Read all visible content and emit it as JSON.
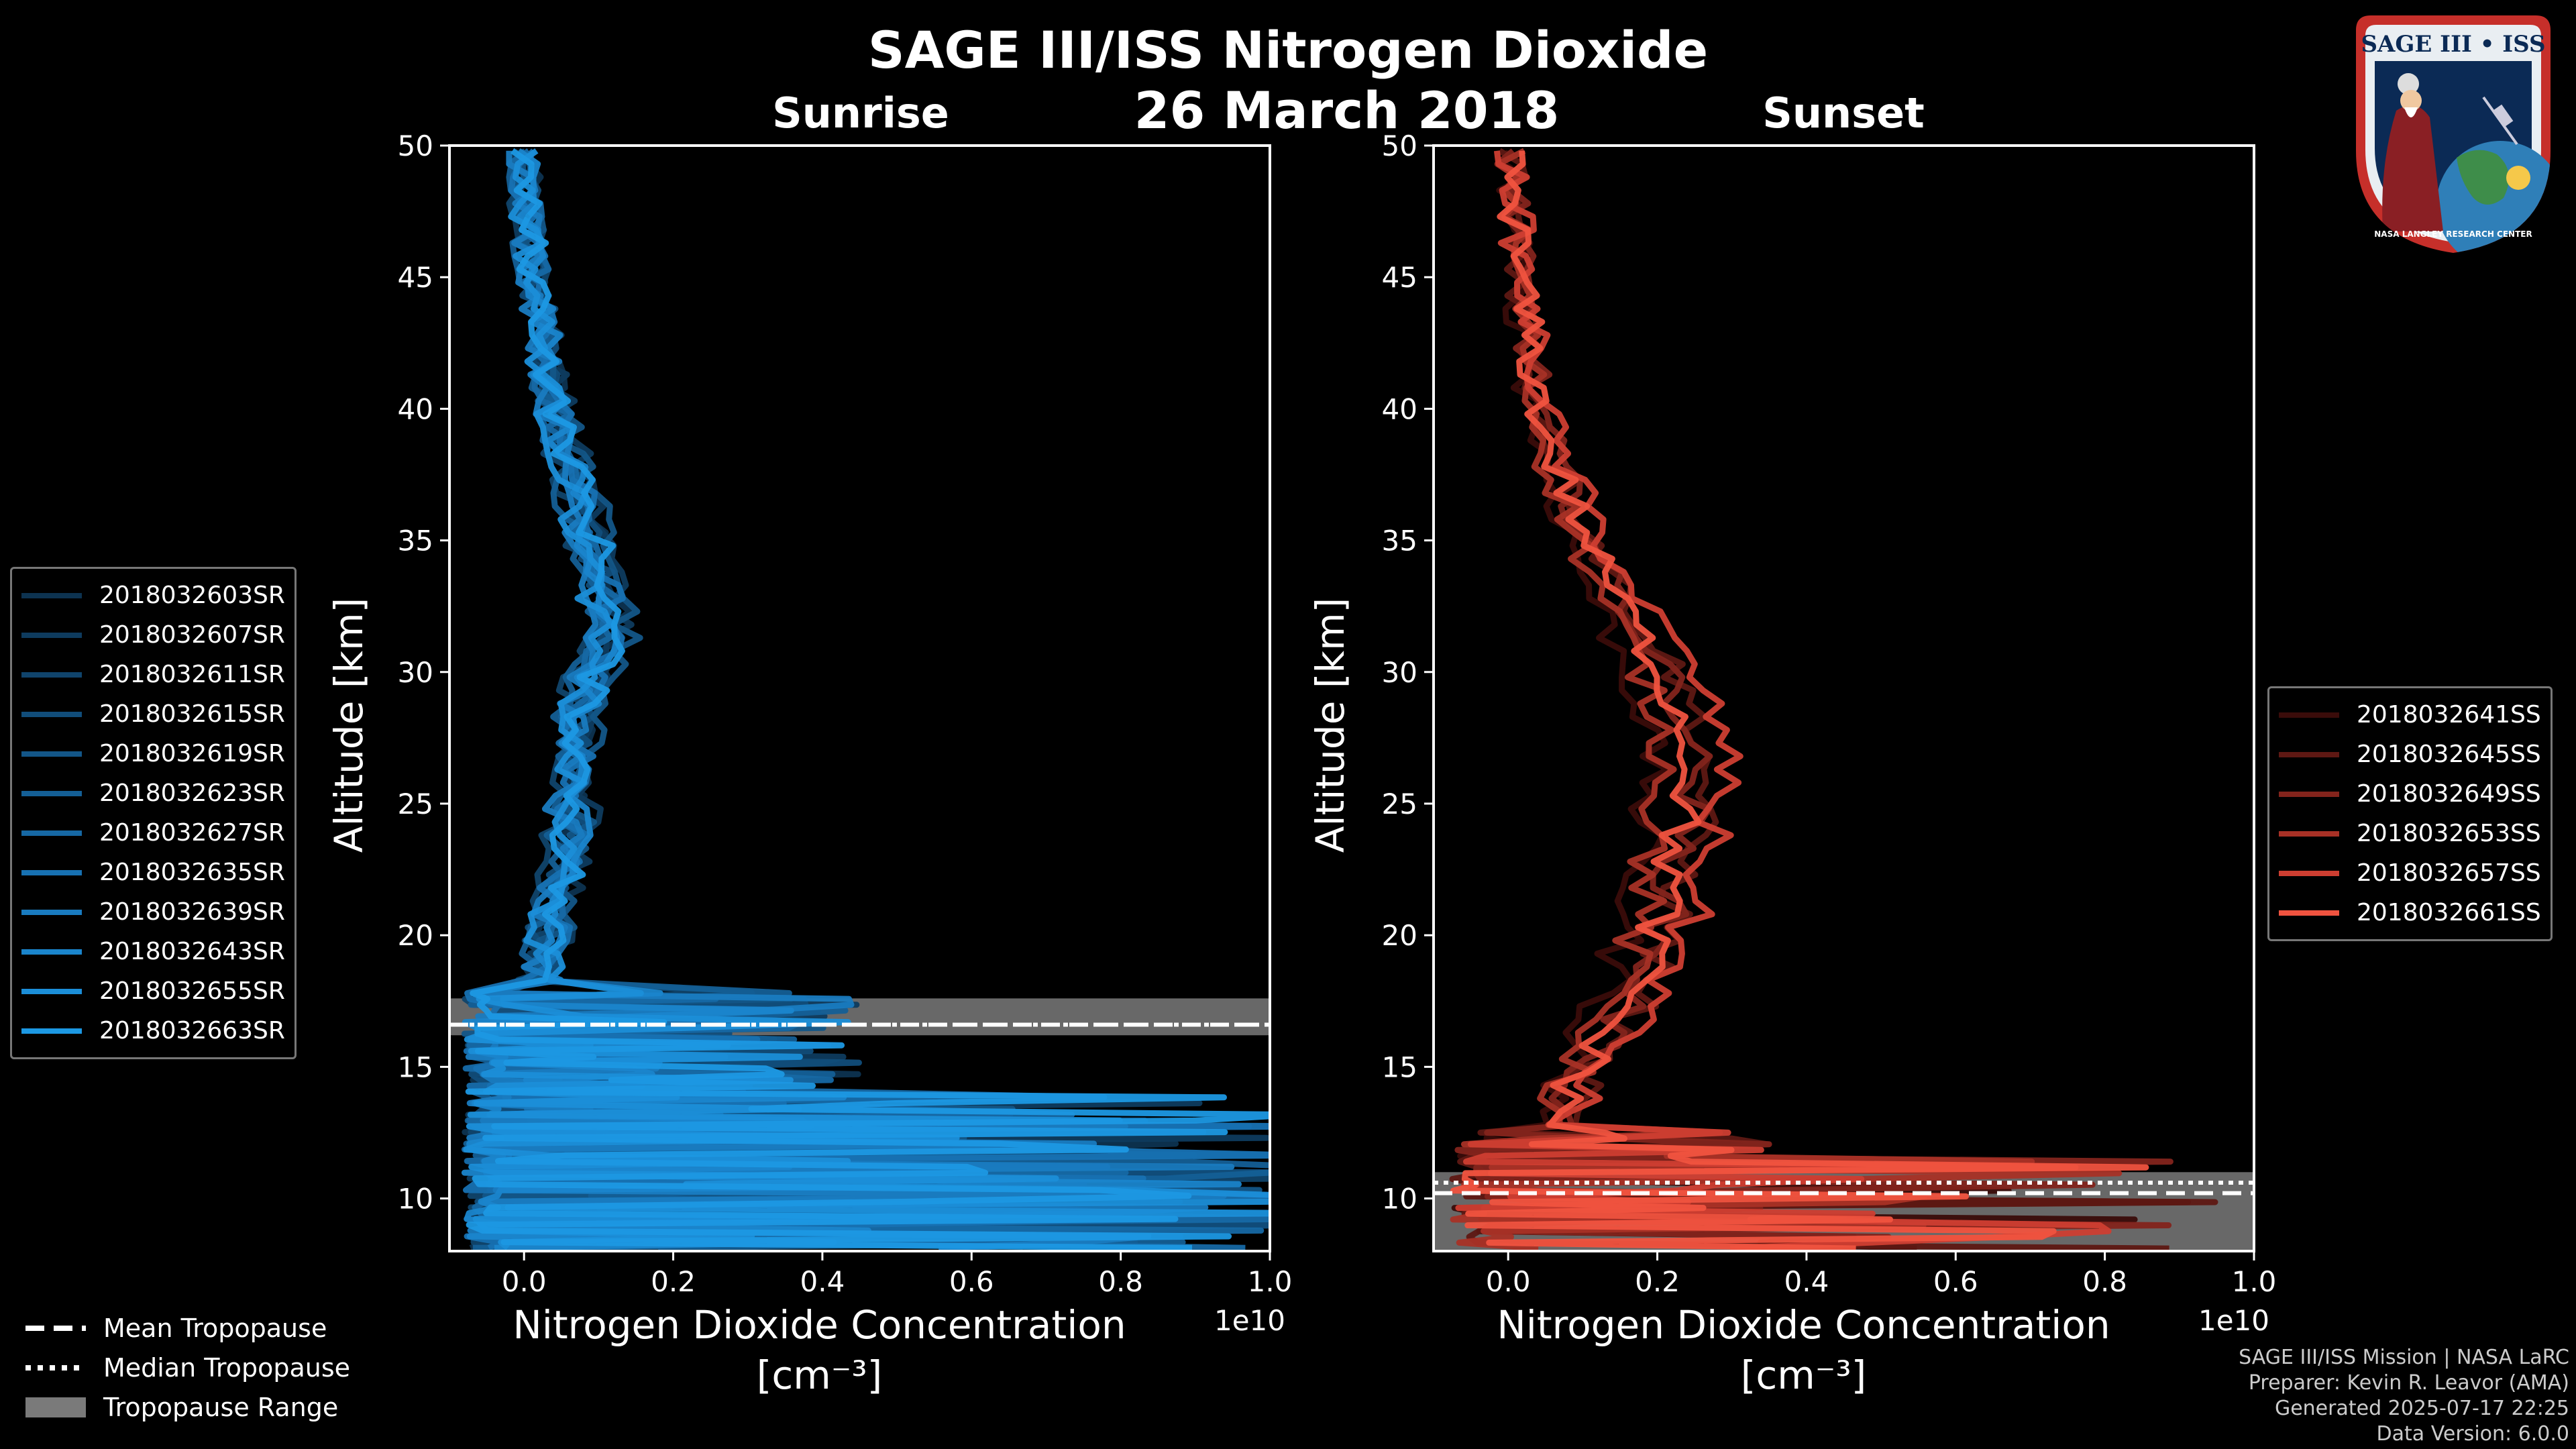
{
  "title": "SAGE III/ISS Nitrogen Dioxide",
  "subtitle": "26 March 2018",
  "badge": {
    "text": "SAGE III • ISS",
    "ring_text": "NASA LANGLEY RESEARCH CENTER"
  },
  "bottom_legend": {
    "mean": "Mean Tropopause",
    "median": "Median Tropopause",
    "range": "Tropopause Range"
  },
  "credits": [
    "SAGE III/ISS Mission | NASA LaRC",
    "Preparer: Kevin R. Leavor (AMA)",
    "Generated 2025-07-17 22:25",
    "Data Version: 6.0.0"
  ],
  "chart_data": [
    {
      "type": "line",
      "title": "Sunrise",
      "xlabel": "Nitrogen Dioxide Concentration",
      "xlabel_units": "[cm⁻³]",
      "x_multiplier": "1e10",
      "ylabel": "Altitude [km]",
      "xlim": [
        -0.1,
        1.0
      ],
      "ylim": [
        8,
        50
      ],
      "xticks": [
        "0.0",
        "0.2",
        "0.4",
        "0.6",
        "0.8",
        "1.0"
      ],
      "yticks": [
        "10",
        "15",
        "20",
        "25",
        "30",
        "35",
        "40",
        "45",
        "50"
      ],
      "tropopause": {
        "mean": 16.6,
        "median": 16.6,
        "range": [
          16.2,
          17.6
        ]
      },
      "mean_profile": [
        [
          50,
          0.0
        ],
        [
          48,
          0.0
        ],
        [
          46,
          0.01
        ],
        [
          44,
          0.02
        ],
        [
          42,
          0.03
        ],
        [
          40,
          0.04
        ],
        [
          38,
          0.06
        ],
        [
          36,
          0.08
        ],
        [
          34,
          0.1
        ],
        [
          33,
          0.11
        ],
        [
          31,
          0.11
        ],
        [
          30,
          0.09
        ],
        [
          28,
          0.07
        ],
        [
          26,
          0.07
        ],
        [
          24,
          0.06
        ],
        [
          22,
          0.05
        ],
        [
          20,
          0.03
        ],
        [
          19,
          0.03
        ],
        [
          18,
          0.02
        ]
      ],
      "series": [
        {
          "name": "2018032603SR",
          "color": "#0d3350"
        },
        {
          "name": "2018032607SR",
          "color": "#0e3b5e"
        },
        {
          "name": "2018032611SR",
          "color": "#10446c"
        },
        {
          "name": "2018032615SR",
          "color": "#114d7a"
        },
        {
          "name": "2018032619SR",
          "color": "#135688"
        },
        {
          "name": "2018032623SR",
          "color": "#145f96"
        },
        {
          "name": "2018032627SR",
          "color": "#1668a4"
        },
        {
          "name": "2018032635SR",
          "color": "#1771b2"
        },
        {
          "name": "2018032639SR",
          "color": "#197bc0"
        },
        {
          "name": "2018032643SR",
          "color": "#1a85cc"
        },
        {
          "name": "2018032655SR",
          "color": "#1b8ed8"
        },
        {
          "name": "2018032663SR",
          "color": "#1c98e3"
        }
      ]
    },
    {
      "type": "line",
      "title": "Sunset",
      "xlabel": "Nitrogen Dioxide Concentration",
      "xlabel_units": "[cm⁻³]",
      "x_multiplier": "1e10",
      "ylabel": "Altitude [km]",
      "xlim": [
        -0.1,
        1.0
      ],
      "ylim": [
        8,
        50
      ],
      "xticks": [
        "0.0",
        "0.2",
        "0.4",
        "0.6",
        "0.8",
        "1.0"
      ],
      "yticks": [
        "10",
        "15",
        "20",
        "25",
        "30",
        "35",
        "40",
        "45",
        "50"
      ],
      "tropopause": {
        "mean": 10.2,
        "median": 10.6,
        "range": [
          8,
          11.0
        ]
      },
      "mean_profile": [
        [
          50,
          0.0
        ],
        [
          48,
          0.01
        ],
        [
          46,
          0.01
        ],
        [
          44,
          0.02
        ],
        [
          42,
          0.03
        ],
        [
          40,
          0.04
        ],
        [
          38,
          0.06
        ],
        [
          36,
          0.09
        ],
        [
          34,
          0.12
        ],
        [
          32,
          0.16
        ],
        [
          30,
          0.2
        ],
        [
          28,
          0.23
        ],
        [
          26,
          0.24
        ],
        [
          24,
          0.22
        ],
        [
          22,
          0.21
        ],
        [
          20,
          0.19
        ],
        [
          18,
          0.17
        ],
        [
          16,
          0.12
        ],
        [
          14,
          0.08
        ],
        [
          12,
          0.05
        ]
      ],
      "series": [
        {
          "name": "2018032641SS",
          "color": "#3a0c0a"
        },
        {
          "name": "2018032645SS",
          "color": "#5e1813"
        },
        {
          "name": "2018032649SS",
          "color": "#83241c"
        },
        {
          "name": "2018032653SS",
          "color": "#a83126"
        },
        {
          "name": "2018032657SS",
          "color": "#cd3e31"
        },
        {
          "name": "2018032661SS",
          "color": "#f0533f"
        }
      ]
    }
  ]
}
